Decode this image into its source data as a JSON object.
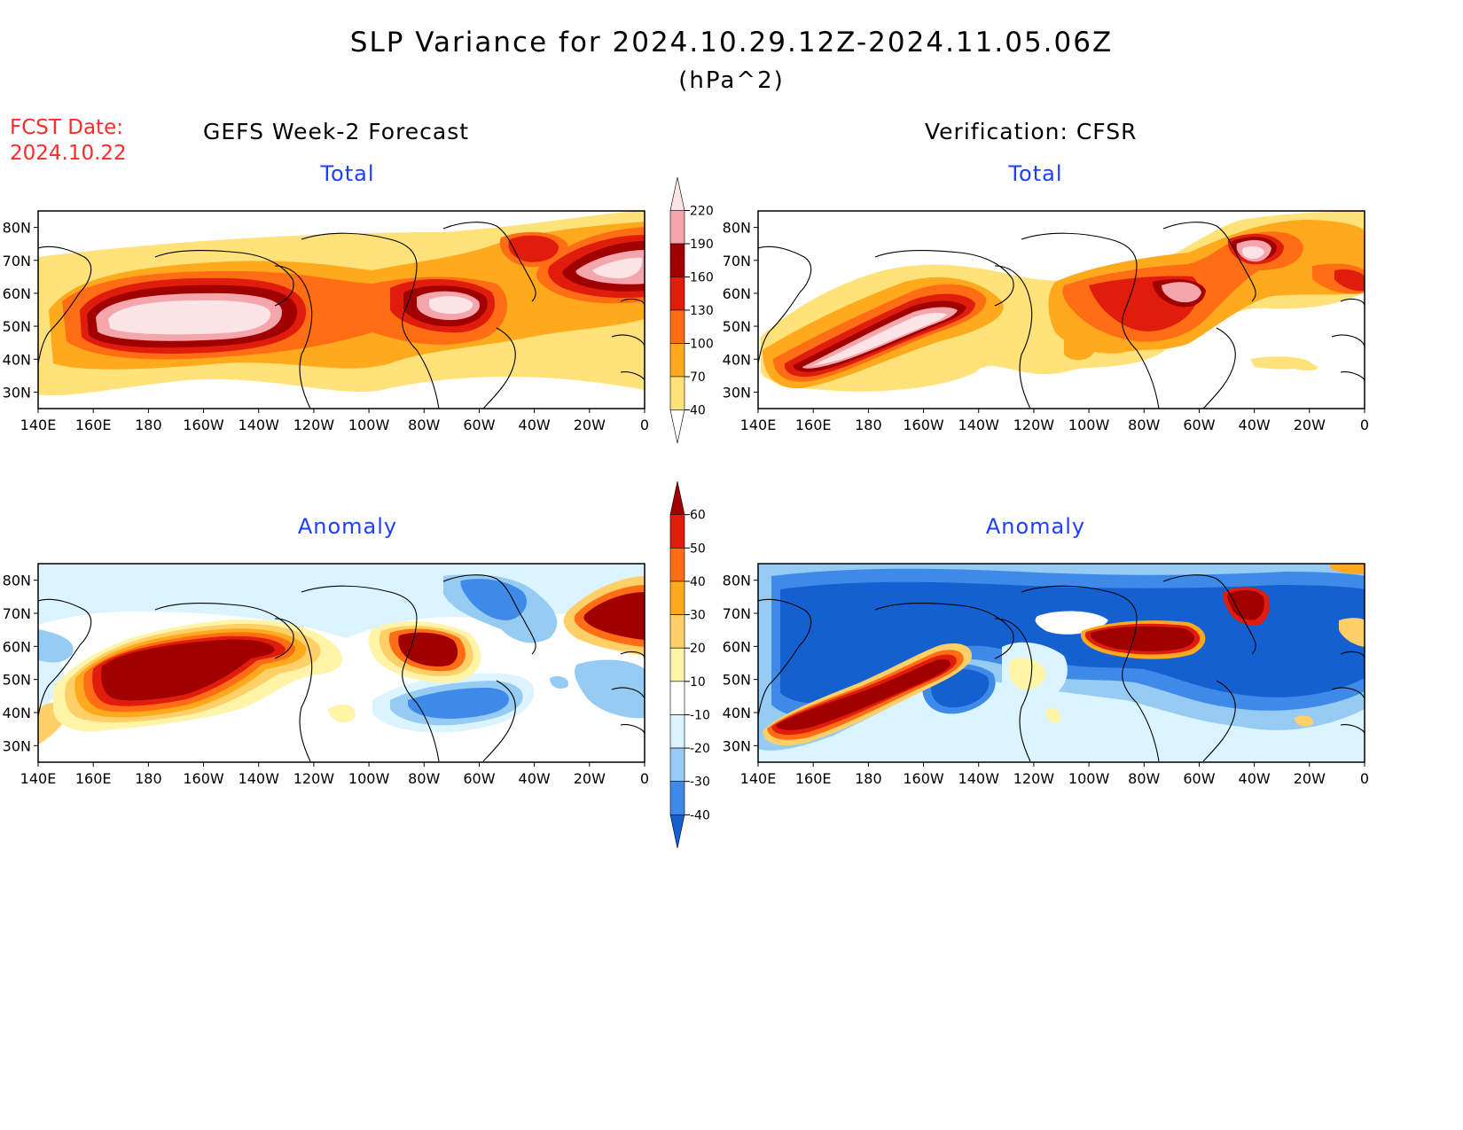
{
  "header": {
    "title": "SLP Variance for 2024.10.29.12Z-2024.11.05.06Z",
    "units": "(hPa^2)",
    "fcst_label": "FCST Date:",
    "fcst_date": "2024.10.22",
    "left_source": "GEFS Week-2 Forecast",
    "right_source": "Verification: CFSR"
  },
  "panels": [
    {
      "id": "gefs-total",
      "label": "Total"
    },
    {
      "id": "cfsr-total",
      "label": "Total"
    },
    {
      "id": "gefs-anomaly",
      "label": "Anomaly"
    },
    {
      "id": "cfsr-anomaly",
      "label": "Anomaly"
    }
  ],
  "axes": {
    "lon_labels": [
      "140E",
      "160E",
      "180",
      "160W",
      "140W",
      "120W",
      "100W",
      "80W",
      "60W",
      "40W",
      "20W",
      "0"
    ],
    "lat_labels": [
      "80N",
      "70N",
      "60N",
      "50N",
      "40N",
      "30N"
    ]
  },
  "colorbars": {
    "total": {
      "levels": [
        "40",
        "70",
        "100",
        "130",
        "160",
        "190",
        "220"
      ],
      "colors": [
        "#ffffff",
        "#ffe27a",
        "#ffaa1c",
        "#ff6e14",
        "#e01c0c",
        "#a00000",
        "#f4a6ac",
        "#fde4e6"
      ]
    },
    "anomaly": {
      "levels": [
        "60",
        "50",
        "40",
        "30",
        "20",
        "10",
        "-10",
        "-20",
        "-30",
        "-40"
      ],
      "colors": [
        "#a00000",
        "#e01c0c",
        "#ff6e14",
        "#ffaa1c",
        "#ffd068",
        "#fff4a8",
        "#ffffff",
        "#dcf4ff",
        "#96ccf4",
        "#3e8ae8",
        "#1560d0"
      ]
    }
  },
  "colors": {
    "fcst_date": "#ff2a2a",
    "panel_label": "#1f3fff",
    "coast": "#000000"
  }
}
